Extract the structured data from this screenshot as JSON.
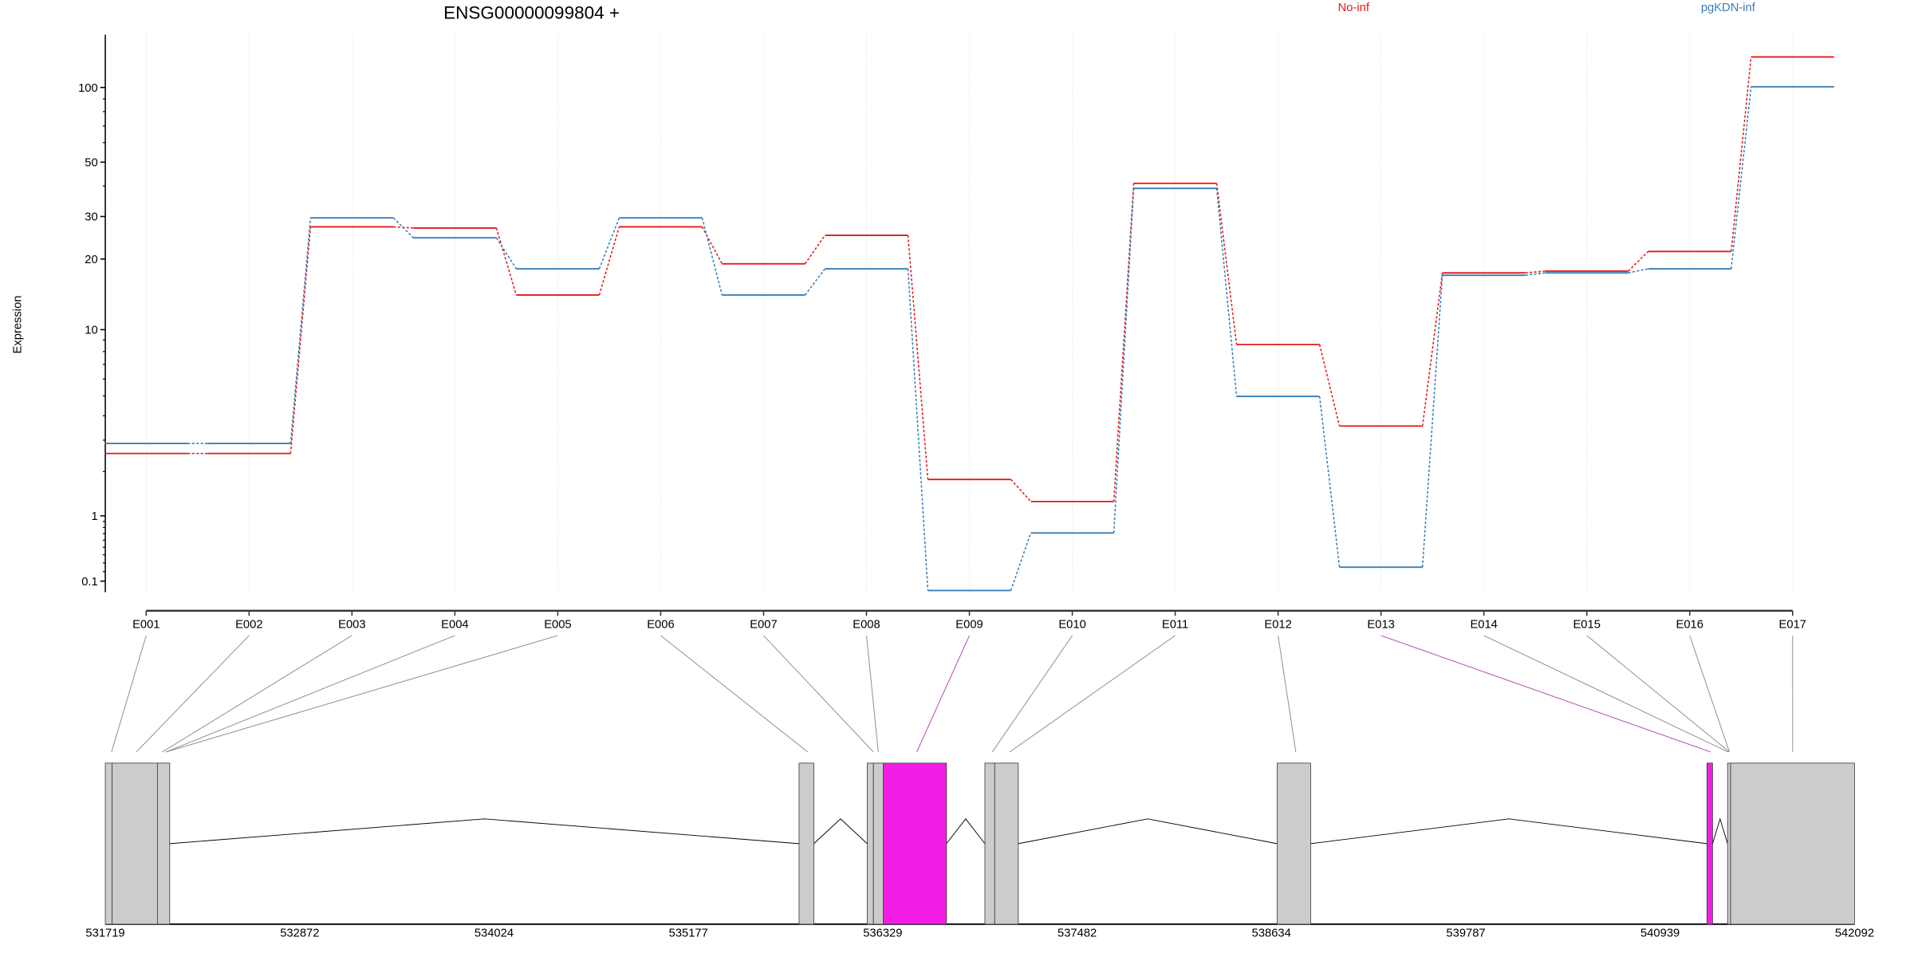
{
  "chart_data": {
    "type": "line",
    "title": "ENSG00000099804 +",
    "ylabel": "Expression",
    "xlabel": "",
    "y_scale": "log10(y+1)",
    "ylim": [
      0,
      160
    ],
    "y_ticks": [
      {
        "value": 100,
        "label": "100"
      },
      {
        "value": 50,
        "label": "50"
      },
      {
        "value": 30,
        "label": "30"
      },
      {
        "value": 20,
        "label": "20"
      },
      {
        "value": 10,
        "label": "10"
      },
      {
        "value": 1,
        "label": "1"
      },
      {
        "value": 0.1,
        "label": "0.1"
      }
    ],
    "y_minor_ticks": [
      0.2,
      0.3,
      0.4,
      0.5,
      0.6,
      0.7,
      0.8,
      0.9,
      2,
      3,
      4,
      5,
      6,
      7,
      8,
      9,
      40,
      60,
      70,
      80,
      90
    ],
    "grid": "vertical dotted at exon bins",
    "legend_placement": "top",
    "categories": [
      "E001",
      "E002",
      "E003",
      "E004",
      "E005",
      "E006",
      "E007",
      "E008",
      "E009",
      "E010",
      "E011",
      "E012",
      "E013",
      "E014",
      "E015",
      "E016",
      "E017"
    ],
    "series": [
      {
        "name": "No-inf",
        "color": "#e31a1c",
        "values": [
          2.54,
          2.54,
          27.2,
          26.9,
          14.1,
          27.2,
          19.1,
          25.1,
          1.79,
          1.28,
          41.0,
          8.6,
          3.55,
          17.5,
          17.8,
          21.5,
          132.6
        ]
      },
      {
        "name": "pgKDN-inf",
        "color": "#377eb8",
        "values": [
          2.88,
          2.88,
          29.6,
          24.5,
          18.2,
          29.6,
          14.1,
          18.2,
          0.01,
          0.71,
          39.1,
          4.97,
          0.25,
          17.1,
          17.5,
          18.2,
          100.7
        ]
      }
    ],
    "gene_model": {
      "genomic_ticks": [
        "531719",
        "532872",
        "534024",
        "535177",
        "536329",
        "537482",
        "538634",
        "539787",
        "540939",
        "542092"
      ],
      "genomic_range": [
        531719,
        542092
      ],
      "exons": [
        {
          "start": 531719,
          "end": 531759,
          "highlight": false
        },
        {
          "start": 531759,
          "end": 532028,
          "highlight": false
        },
        {
          "start": 532028,
          "end": 532101,
          "highlight": false
        },
        {
          "start": 535833,
          "end": 535921,
          "highlight": false
        },
        {
          "start": 536237,
          "end": 536274,
          "highlight": false
        },
        {
          "start": 536274,
          "end": 536333,
          "highlight": false
        },
        {
          "start": 536333,
          "end": 536707,
          "highlight": true
        },
        {
          "start": 536935,
          "end": 536993,
          "highlight": false
        },
        {
          "start": 536993,
          "end": 537133,
          "highlight": false
        },
        {
          "start": 538668,
          "end": 538867,
          "highlight": false
        },
        {
          "start": 541217,
          "end": 541250,
          "highlight": true
        },
        {
          "start": 541339,
          "end": 541357,
          "highlight": false
        },
        {
          "start": 541357,
          "end": 542092,
          "highlight": false
        }
      ],
      "introns": [
        [
          532101,
          535833
        ],
        [
          535921,
          536237
        ],
        [
          536707,
          536935
        ],
        [
          537133,
          538668
        ],
        [
          538867,
          541217
        ],
        [
          541250,
          541339
        ]
      ],
      "bin_positions": [
        531756,
        531903,
        532057,
        532079,
        532079,
        535884,
        536274,
        536303,
        536531,
        536979,
        537082,
        538779,
        541239,
        541342,
        541350,
        541350,
        541725
      ],
      "exon_color": "#cccccc",
      "highlight_color": "#f21ee6"
    }
  }
}
